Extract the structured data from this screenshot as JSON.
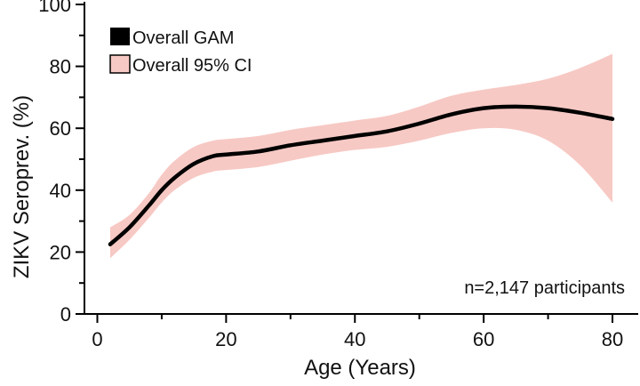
{
  "chart_data": {
    "type": "line",
    "xlabel": "Age (Years)",
    "ylabel": "ZIKV Seroprev. (%)",
    "xlim": [
      -2,
      84
    ],
    "ylim": [
      0,
      100
    ],
    "xticks": [
      0,
      20,
      40,
      60,
      80
    ],
    "yticks": [
      0,
      20,
      40,
      60,
      80,
      100
    ],
    "grid": false,
    "legend_position": "top-left",
    "annotation": "n=2,147 participants",
    "series": [
      {
        "name": "Overall GAM",
        "style": "line",
        "color": "#000000",
        "x": [
          2,
          5,
          8,
          10,
          12,
          15,
          18,
          20,
          25,
          30,
          35,
          40,
          45,
          50,
          55,
          60,
          65,
          70,
          75,
          80
        ],
        "y": [
          22.5,
          28,
          35,
          40,
          44,
          48.5,
          51,
          51.5,
          52.5,
          54.5,
          56,
          57.5,
          59,
          61.5,
          64.5,
          66.5,
          67,
          66.5,
          65,
          63
        ]
      },
      {
        "name": "Overall 95% CI",
        "style": "band",
        "color": "#f7c9c4",
        "x": [
          2,
          5,
          8,
          10,
          12,
          15,
          18,
          20,
          25,
          30,
          35,
          40,
          45,
          50,
          55,
          60,
          65,
          70,
          75,
          80
        ],
        "lower": [
          18,
          24,
          31,
          36,
          40,
          44,
          46,
          46.5,
          47.5,
          49.5,
          51.5,
          53,
          54,
          56,
          58.5,
          60,
          59.5,
          56,
          48,
          36
        ],
        "upper": [
          28,
          32,
          39,
          45,
          49.5,
          54,
          56,
          56.5,
          57.5,
          59.5,
          61,
          62.5,
          64,
          67,
          70.5,
          72.5,
          74,
          76,
          79.5,
          84
        ]
      }
    ]
  }
}
